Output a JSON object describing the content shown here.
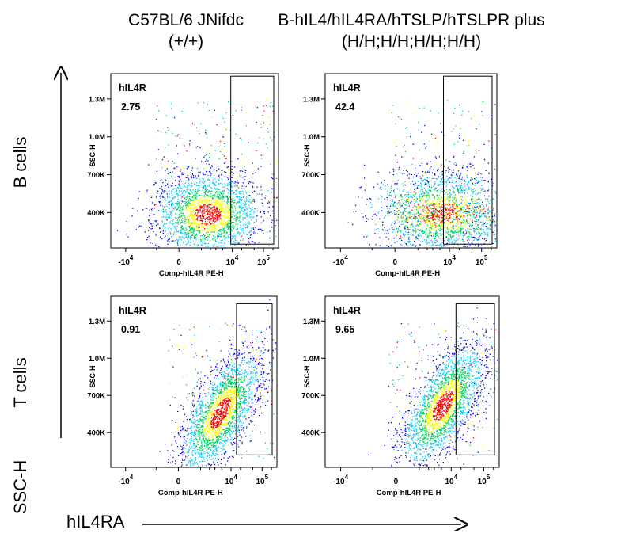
{
  "header": {
    "col1_line1": "C57BL/6 JNifdc",
    "col1_line2": "(+/+)",
    "col2_line1": "B-hIL4/hIL4RA/hTSLP/hTSLPR plus",
    "col2_line2": "(H/H;H/H;H/H;H/H)"
  },
  "rows": {
    "b_cells": "B cells",
    "t_cells": "T cells"
  },
  "axes": {
    "y_arrow_label": "SSC-H",
    "x_arrow_label": "hIL4RA"
  },
  "colors": {
    "density_low": "#0000ff",
    "density_mid_low": "#00c8ff",
    "density_mid": "#00d060",
    "density_mid_high": "#ffff00",
    "density_high": "#ff0000"
  },
  "chart_data": [
    {
      "type": "scatter",
      "panel": "B cells / C57BL/6 JNifdc",
      "gate_name": "hIL4R",
      "gate_percent": "2.75",
      "xlabel": "Comp-hIL4R PE-H",
      "ylabel": "SSC-H",
      "x_ticks": [
        "-10^4",
        "0",
        "10^4",
        "10^5"
      ],
      "y_ticks": [
        "400K",
        "700K",
        "1.0M",
        "1.3M"
      ],
      "y_tick_values": [
        400000,
        700000,
        1000000,
        1300000
      ],
      "ylim": [
        120000,
        1500000
      ],
      "density_center": {
        "x": 1600,
        "y": 390000
      },
      "gate": {
        "x_min": 9000,
        "x_max": 250000,
        "y_min": 150000,
        "y_max": 1480000
      }
    },
    {
      "type": "scatter",
      "panel": "B cells / B-hIL4/hIL4RA/hTSLP/hTSLPR plus",
      "gate_name": "hIL4R",
      "gate_percent": "42.4",
      "xlabel": "Comp-hIL4R PE-H",
      "ylabel": "SSC-H",
      "x_ticks": [
        "-10^4",
        "0",
        "10^4",
        "10^5"
      ],
      "y_ticks": [
        "400K",
        "700K",
        "1.0M",
        "1.3M"
      ],
      "y_tick_values": [
        400000,
        700000,
        1000000,
        1300000
      ],
      "ylim": [
        120000,
        1500000
      ],
      "density_center": {
        "x": 6000,
        "y": 400000
      },
      "gate": {
        "x_min": 6500,
        "x_max": 250000,
        "y_min": 150000,
        "y_max": 1480000
      }
    },
    {
      "type": "scatter",
      "panel": "T cells / C57BL/6 JNifdc",
      "gate_name": "hIL4R",
      "gate_percent": "0.91",
      "xlabel": "Comp-hIL4R PE-H",
      "ylabel": "SSC-H",
      "x_ticks": [
        "-10^4",
        "0",
        "10^4",
        "10^5"
      ],
      "y_ticks": [
        "400K",
        "700K",
        "1.0M",
        "1.3M"
      ],
      "y_tick_values": [
        400000,
        700000,
        1000000,
        1300000
      ],
      "ylim": [
        120000,
        1500000
      ],
      "density_center": {
        "x": 4500,
        "y": 560000
      },
      "gate": {
        "x_min": 15000,
        "x_max": 250000,
        "y_min": 220000,
        "y_max": 1440000
      }
    },
    {
      "type": "scatter",
      "panel": "T cells / B-hIL4/hIL4RA/hTSLP/hTSLPR plus",
      "gate_name": "hIL4R",
      "gate_percent": "9.65",
      "xlabel": "Comp-hIL4R PE-H",
      "ylabel": "SSC-H",
      "x_ticks": [
        "-10^4",
        "0",
        "10^4",
        "10^5"
      ],
      "y_ticks": [
        "400K",
        "700K",
        "1.0M",
        "1.3M"
      ],
      "y_tick_values": [
        400000,
        700000,
        1000000,
        1300000
      ],
      "ylim": [
        120000,
        1500000
      ],
      "density_center": {
        "x": 5500,
        "y": 620000
      },
      "gate": {
        "x_min": 14000,
        "x_max": 250000,
        "y_min": 220000,
        "y_max": 1440000
      }
    }
  ]
}
